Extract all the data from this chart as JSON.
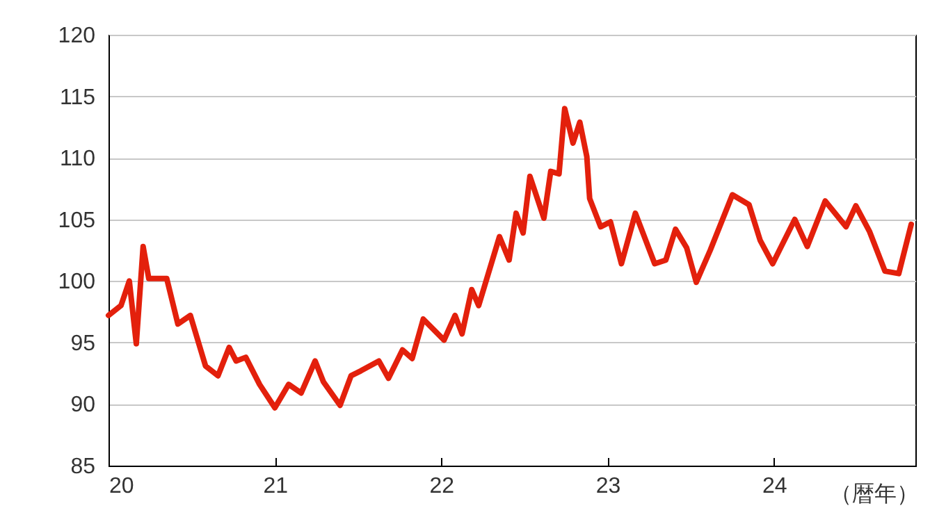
{
  "chart_data": {
    "type": "line",
    "xlabel": "（暦年）",
    "x": [
      20.0,
      20.075,
      20.125,
      20.167,
      20.208,
      20.242,
      20.35,
      20.417,
      20.492,
      20.583,
      20.658,
      20.725,
      20.767,
      20.825,
      20.908,
      21.0,
      21.083,
      21.158,
      21.242,
      21.292,
      21.392,
      21.458,
      21.517,
      21.625,
      21.683,
      21.767,
      21.825,
      21.892,
      22.017,
      22.083,
      22.125,
      22.183,
      22.225,
      22.35,
      22.408,
      22.45,
      22.492,
      22.533,
      22.617,
      22.658,
      22.708,
      22.742,
      22.792,
      22.833,
      22.875,
      22.892,
      22.958,
      23.017,
      23.083,
      23.167,
      23.283,
      23.35,
      23.408,
      23.475,
      23.533,
      23.617,
      23.75,
      23.85,
      23.917,
      23.992,
      24.125,
      24.2,
      24.308,
      24.433,
      24.492,
      24.575,
      24.667,
      24.75,
      24.825
    ],
    "series": [
      {
        "color": "#e3200c",
        "values": [
          97.2,
          98.0,
          100.0,
          94.9,
          102.8,
          100.2,
          100.2,
          96.5,
          97.2,
          93.1,
          92.3,
          94.6,
          93.5,
          93.8,
          91.6,
          89.7,
          91.6,
          90.9,
          93.5,
          91.8,
          89.9,
          92.3,
          92.7,
          93.5,
          92.1,
          94.4,
          93.7,
          96.9,
          95.2,
          97.2,
          95.7,
          99.3,
          98.0,
          103.6,
          101.7,
          105.5,
          103.9,
          108.5,
          105.1,
          108.9,
          108.7,
          114.0,
          111.2,
          112.9,
          110.1,
          106.7,
          104.4,
          104.8,
          101.4,
          105.5,
          101.4,
          101.7,
          104.2,
          102.7,
          99.9,
          102.5,
          107.0,
          106.2,
          103.3,
          101.4,
          105.0,
          102.8,
          106.5,
          104.4,
          106.1,
          104.0,
          100.8,
          100.6,
          104.6
        ]
      }
    ],
    "xlim": [
      20,
      24.85
    ],
    "xticks": [
      20,
      21,
      22,
      23,
      24
    ],
    "ylim": [
      85,
      120
    ],
    "yticks": [
      85,
      90,
      95,
      100,
      105,
      110,
      115,
      120
    ],
    "grid": "y",
    "marker": "none",
    "line_style": "solid"
  }
}
